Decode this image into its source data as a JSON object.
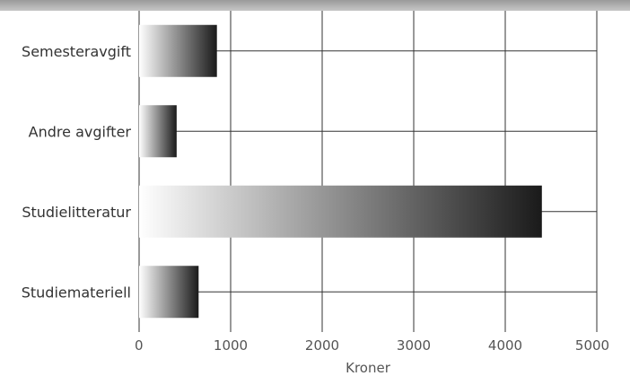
{
  "chart_data": {
    "type": "bar",
    "orientation": "horizontal",
    "categories": [
      "Semesteravgift",
      "Andre avgifter",
      "Studielitteratur",
      "Studiemateriell"
    ],
    "values": [
      850,
      410,
      4400,
      650
    ],
    "title": "",
    "xlabel": "Kroner",
    "ylabel": "",
    "xlim": [
      0,
      5000
    ],
    "xticks": [
      "0",
      "1000",
      "2000",
      "3000",
      "4000",
      "5000"
    ],
    "grid": true,
    "bar_fill": "gradient light-to-dark",
    "colors": {
      "bar_light": "#ffffff",
      "bar_dark": "#1a1a1a",
      "grid": "#333333",
      "text": "#333333"
    }
  }
}
